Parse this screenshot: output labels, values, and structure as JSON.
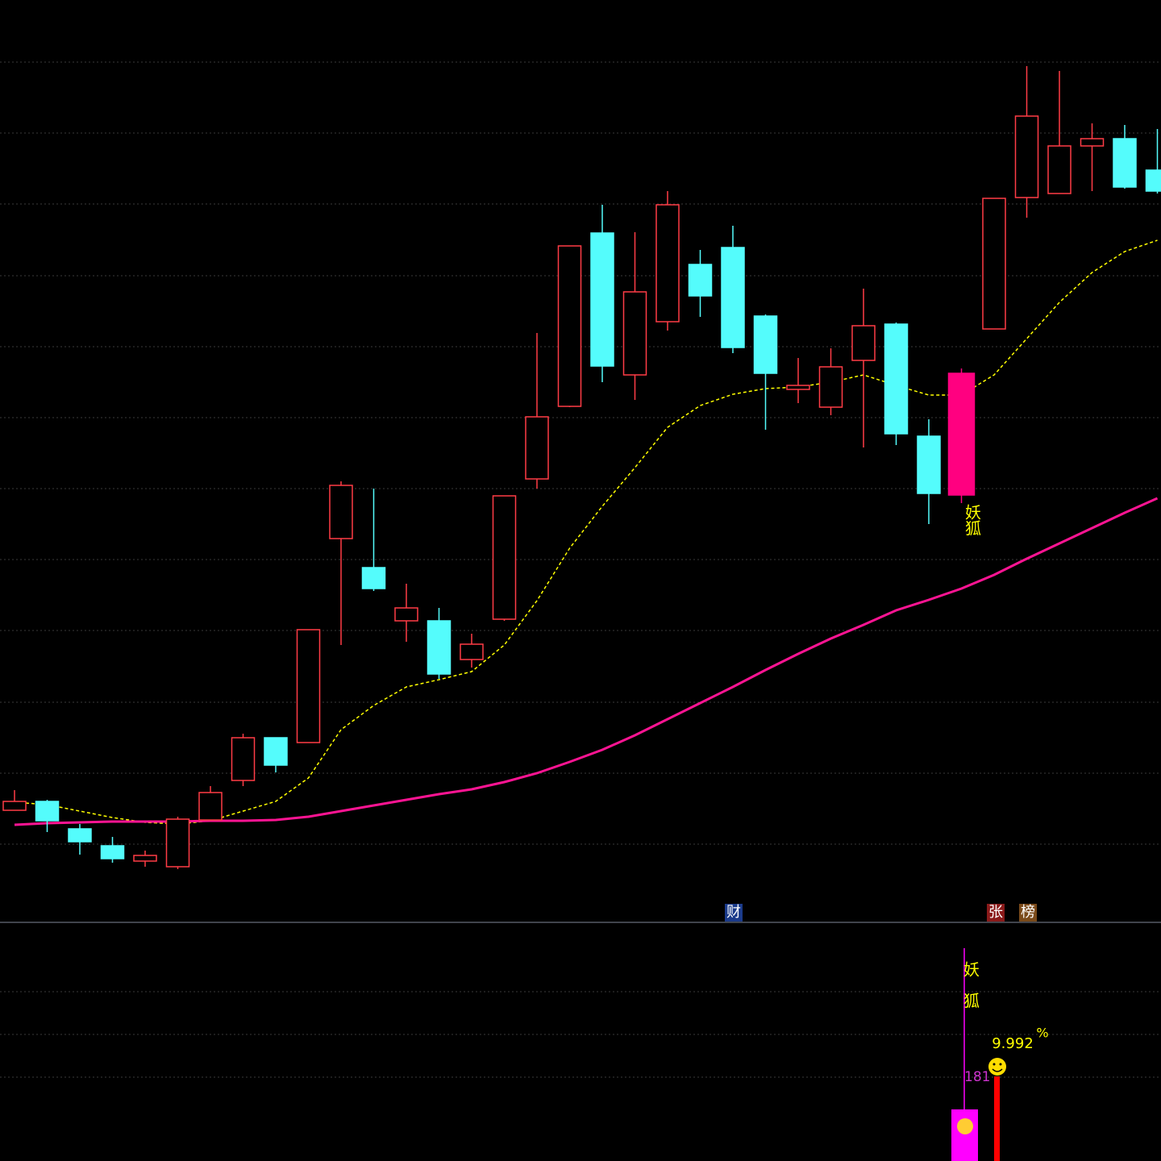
{
  "chart_data": {
    "type": "candlestick",
    "categories": [
      null,
      null,
      null,
      null,
      null,
      null,
      null,
      null,
      null,
      null,
      null,
      null,
      null,
      null,
      null,
      null,
      null,
      null,
      null,
      null,
      null,
      null,
      null,
      null,
      null,
      null,
      null,
      null,
      null,
      null,
      null,
      null,
      null,
      null,
      null,
      null
    ],
    "open": [
      13.5,
      14.6,
      11.2,
      9.1,
      7.2,
      6.5,
      12.3,
      17.2,
      22.5,
      21.9,
      47.2,
      43.6,
      37,
      37,
      32.2,
      37.2,
      54.6,
      63.6,
      85.1,
      67.5,
      74.1,
      81.2,
      83.3,
      74.8,
      65.7,
      63.5,
      69.3,
      73.8,
      59.9,
      52.6,
      73.2,
      89.5,
      90,
      95.9,
      96.8,
      92.9
    ],
    "high": [
      16,
      14.8,
      11.8,
      10.2,
      8.5,
      12.7,
      16.5,
      23,
      22.5,
      35.9,
      54.3,
      53.4,
      41.6,
      38.6,
      35.4,
      52.5,
      72.7,
      83.5,
      88.6,
      85.2,
      90.3,
      83,
      86,
      75,
      69.6,
      70.8,
      78.2,
      74,
      62,
      68.3,
      89.4,
      105.8,
      105.2,
      98.7,
      98.5,
      98
    ],
    "low": [
      13.5,
      10.8,
      8,
      7,
      6.5,
      6.2,
      12.2,
      16.5,
      18.2,
      21.9,
      34,
      40.7,
      34.4,
      29.8,
      31.2,
      37,
      53.4,
      63.5,
      66.6,
      64.4,
      73,
      74.7,
      70.2,
      60.7,
      64,
      62.5,
      58.5,
      58.8,
      49,
      51.6,
      73.2,
      87,
      90,
      90.3,
      90.6,
      90
    ],
    "close": [
      14.6,
      12.2,
      9.6,
      7.5,
      7.9,
      12.4,
      15.7,
      22.5,
      19.1,
      35.9,
      53.8,
      41,
      38.6,
      30.4,
      34.1,
      52.5,
      62.3,
      83.5,
      68.6,
      77.8,
      88.6,
      77.3,
      70.9,
      67.7,
      66.2,
      68.5,
      73.6,
      60.2,
      52.8,
      67.7,
      89.4,
      99.6,
      95.9,
      96.8,
      90.8,
      90.3
    ],
    "up_color": "#ff3c46",
    "down_color": "#54fcfc",
    "highlight": {
      "index": 29,
      "color": "#ff0080"
    },
    "series": [
      {
        "color": "#ffff00",
        "style": "dashed",
        "values": [
          14.5,
          14.2,
          13.4,
          12.6,
          12,
          11.8,
          12.2,
          13.4,
          14.6,
          17.5,
          23.5,
          26.5,
          28.8,
          29.7,
          30.7,
          34,
          39.5,
          46,
          51.2,
          56,
          61,
          63.7,
          65.1,
          65.8,
          66,
          66.6,
          67.5,
          66.2,
          65,
          65,
          67.5,
          72,
          76.5,
          80.2,
          82.8,
          84.2
        ]
      },
      {
        "color": "#ff1493",
        "style": "solid",
        "values": [
          11.7,
          11.9,
          12,
          12.1,
          12.1,
          12.1,
          12.2,
          12.2,
          12.3,
          12.7,
          13.4,
          14.1,
          14.8,
          15.5,
          16.1,
          17,
          18.1,
          19.5,
          21,
          22.8,
          24.8,
          26.8,
          28.8,
          30.9,
          32.9,
          34.8,
          36.5,
          38.3,
          39.6,
          41,
          42.7,
          44.7,
          46.6,
          48.5,
          50.4,
          52.2
        ]
      }
    ],
    "ylim": [
      0,
      114
    ],
    "annotation": "妖狐",
    "tags": [
      "财",
      "张",
      "榜"
    ]
  },
  "indicator": {
    "labels": [
      "妖",
      "狐"
    ],
    "percent": 9.992,
    "unit": "%",
    "count": 181
  }
}
